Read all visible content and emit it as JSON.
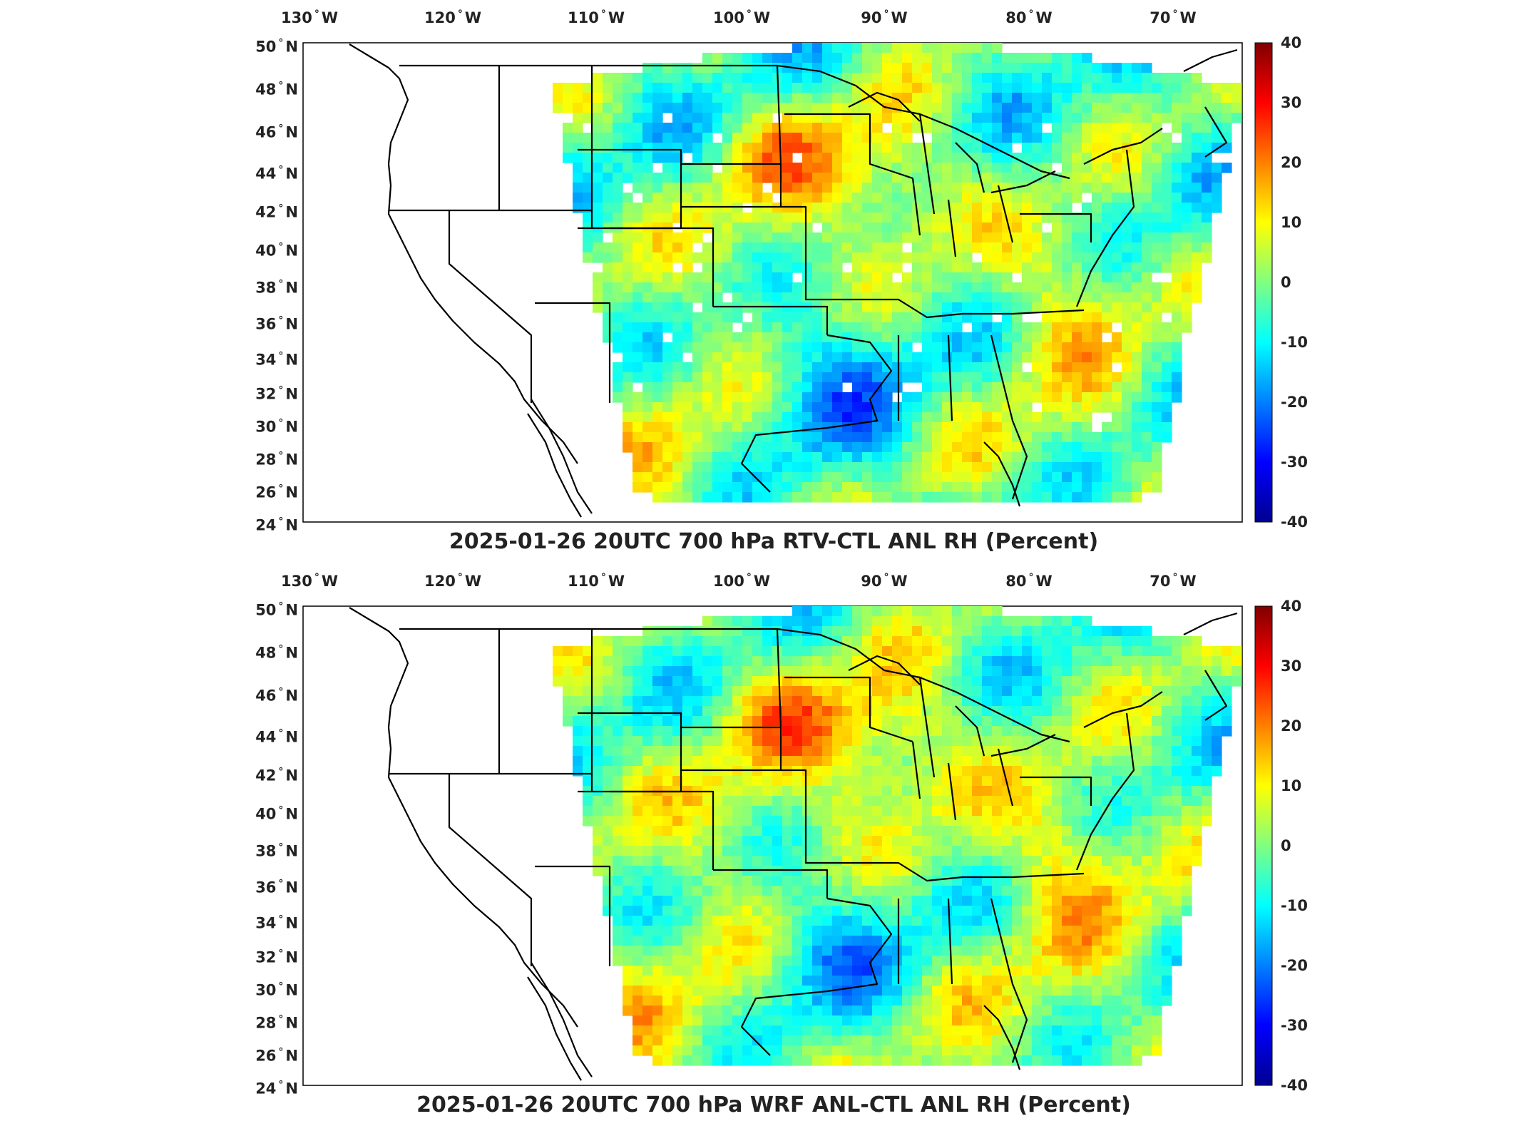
{
  "colors": {
    "background": "#ffffff",
    "land": "#ffffff",
    "outline": "#000000",
    "colormap": [
      "#00008f",
      "#0000ff",
      "#0080ff",
      "#00ffff",
      "#80ff80",
      "#ffff00",
      "#ff8000",
      "#ff0000",
      "#800000"
    ]
  },
  "map": {
    "lon_ticks": [
      "130",
      "120",
      "110",
      "100",
      "90",
      "80",
      "70"
    ],
    "lon_hemisphere": "W",
    "lat_ticks": [
      "50",
      "48",
      "46",
      "44",
      "42",
      "40",
      "38",
      "36",
      "34",
      "32",
      "30",
      "28",
      "26",
      "24"
    ],
    "lat_hemisphere": "N",
    "colorbar_ticks": [
      "40",
      "30",
      "20",
      "10",
      "0",
      "-10",
      "-20",
      "-30",
      "-40"
    ],
    "colorbar_range": [
      -40,
      40
    ]
  },
  "panels": [
    {
      "title": "2025-01-26 20UTC 700 hPa RTV-CTL ANL RH (Percent)",
      "pattern": "rtv"
    },
    {
      "title": "2025-01-26 20UTC 700 hPa WRF ANL-CTL ANL RH (Percent)",
      "pattern": "wrf"
    }
  ]
}
